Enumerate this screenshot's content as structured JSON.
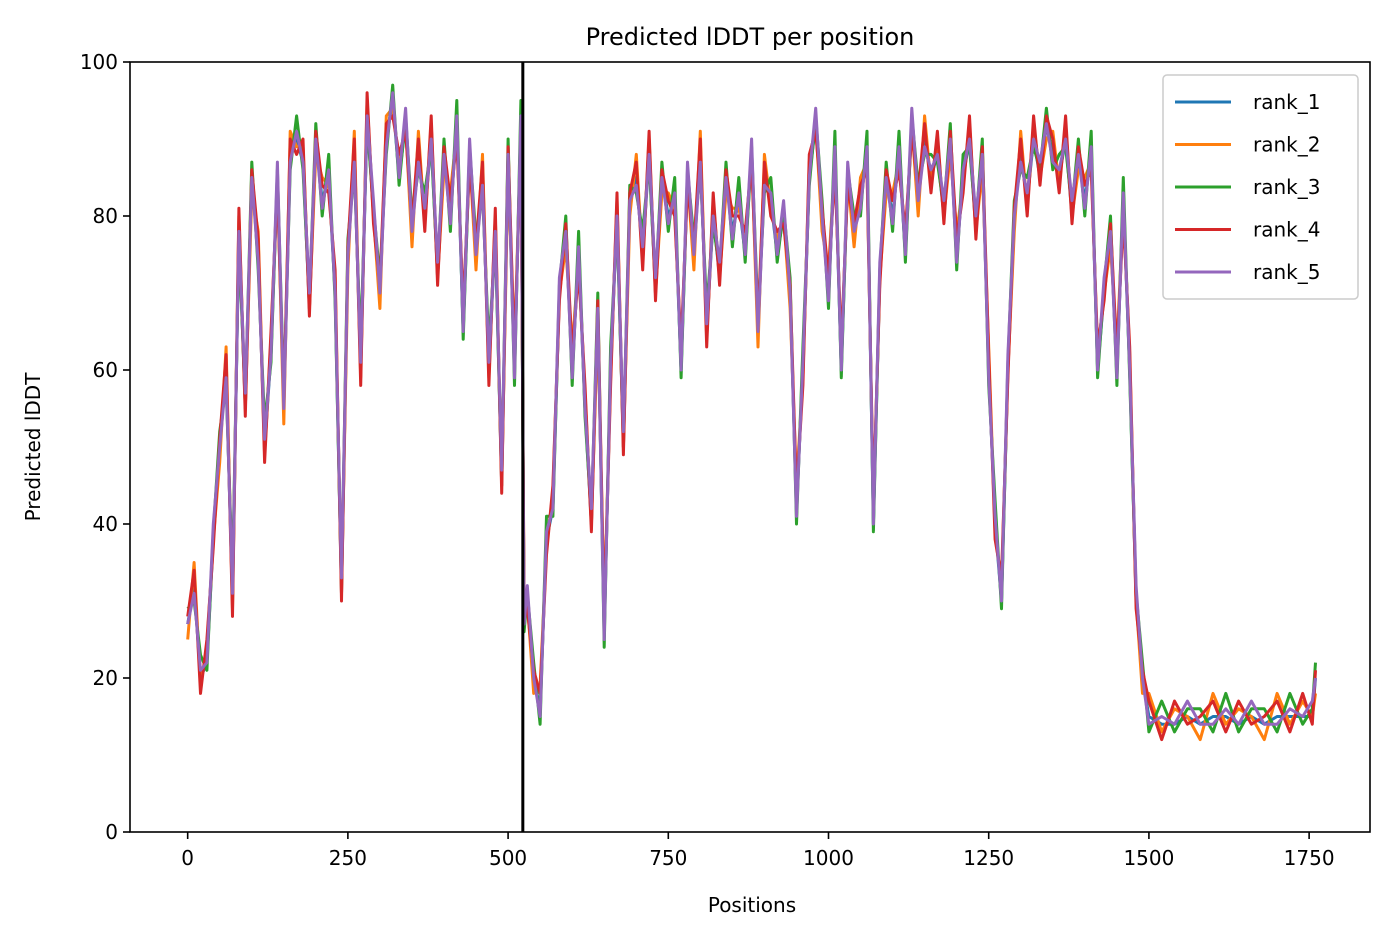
{
  "chart_data": {
    "type": "line",
    "title": "Predicted lDDT per position",
    "xlabel": "Positions",
    "ylabel": "Predicted lDDT",
    "xlim": [
      -90,
      1845
    ],
    "ylim": [
      0,
      100
    ],
    "xticks": [
      0,
      250,
      500,
      750,
      1000,
      1250,
      1500,
      1750
    ],
    "yticks": [
      0,
      20,
      40,
      60,
      80,
      100
    ],
    "grid": false,
    "legend_position": "top-right",
    "chain_break": 523,
    "series": [
      {
        "name": "rank_1",
        "color": "#1f77b4"
      },
      {
        "name": "rank_2",
        "color": "#ff7f0e"
      },
      {
        "name": "rank_3",
        "color": "#2ca02c"
      },
      {
        "name": "rank_4",
        "color": "#d62728"
      },
      {
        "name": "rank_5",
        "color": "#9467bd"
      }
    ],
    "x": [
      0,
      10,
      20,
      30,
      40,
      50,
      60,
      70,
      80,
      90,
      100,
      110,
      120,
      130,
      140,
      150,
      160,
      170,
      180,
      190,
      200,
      210,
      220,
      230,
      240,
      250,
      260,
      270,
      280,
      290,
      300,
      310,
      320,
      330,
      340,
      350,
      360,
      370,
      380,
      390,
      400,
      410,
      420,
      430,
      440,
      450,
      460,
      470,
      480,
      490,
      500,
      510,
      520,
      525,
      530,
      540,
      550,
      560,
      570,
      580,
      590,
      600,
      610,
      620,
      630,
      640,
      650,
      660,
      670,
      680,
      690,
      700,
      710,
      720,
      730,
      740,
      750,
      760,
      770,
      780,
      790,
      800,
      810,
      820,
      830,
      840,
      850,
      860,
      870,
      880,
      890,
      900,
      910,
      920,
      930,
      940,
      950,
      960,
      970,
      980,
      990,
      1000,
      1010,
      1020,
      1030,
      1040,
      1050,
      1060,
      1070,
      1080,
      1090,
      1100,
      1110,
      1120,
      1130,
      1140,
      1150,
      1160,
      1170,
      1180,
      1190,
      1200,
      1210,
      1220,
      1230,
      1240,
      1250,
      1260,
      1270,
      1280,
      1290,
      1300,
      1310,
      1320,
      1330,
      1340,
      1350,
      1360,
      1370,
      1380,
      1390,
      1400,
      1410,
      1420,
      1430,
      1440,
      1450,
      1460,
      1470,
      1480,
      1490,
      1500,
      1520,
      1540,
      1560,
      1580,
      1600,
      1620,
      1640,
      1660,
      1680,
      1700,
      1720,
      1740,
      1755,
      1760
    ],
    "base": [
      27,
      32,
      20,
      22,
      38,
      50,
      60,
      30,
      78,
      55,
      85,
      75,
      50,
      62,
      85,
      55,
      88,
      90,
      87,
      68,
      90,
      82,
      85,
      70,
      31,
      75,
      88,
      60,
      93,
      80,
      70,
      90,
      95,
      85,
      92,
      78,
      88,
      80,
      90,
      72,
      88,
      80,
      92,
      65,
      88,
      75,
      85,
      60,
      78,
      45,
      88,
      60,
      92,
      27,
      30,
      20,
      16,
      38,
      42,
      70,
      78,
      60,
      75,
      55,
      40,
      68,
      26,
      60,
      80,
      50,
      82,
      85,
      75,
      88,
      70,
      85,
      80,
      82,
      60,
      85,
      75,
      88,
      65,
      80,
      72,
      85,
      78,
      82,
      75,
      88,
      65,
      85,
      82,
      75,
      80,
      70,
      42,
      60,
      85,
      92,
      80,
      70,
      88,
      60,
      85,
      78,
      82,
      88,
      40,
      72,
      85,
      80,
      88,
      75,
      92,
      82,
      90,
      85,
      88,
      80,
      90,
      75,
      85,
      90,
      78,
      88,
      60,
      40,
      30,
      60,
      80,
      88,
      82,
      90,
      85,
      92,
      88,
      85,
      90,
      80,
      88,
      82,
      88,
      60,
      70,
      78,
      60,
      82,
      60,
      30,
      20,
      15,
      14,
      14,
      15,
      14,
      15,
      15,
      14,
      15,
      14,
      15,
      15,
      15,
      15,
      20
    ],
    "series_offsets": [
      {
        "name": "rank_1",
        "values": [
          0,
          0,
          0,
          0,
          0
        ]
      },
      {
        "name": "rank_2",
        "values": [
          -2,
          3,
          -1,
          2,
          0
        ]
      },
      {
        "name": "rank_3",
        "values": [
          2,
          -2,
          3,
          -1,
          1
        ]
      },
      {
        "name": "rank_4",
        "values": [
          1,
          2,
          -2,
          3,
          -1
        ]
      },
      {
        "name": "rank_5",
        "values": [
          0,
          -1,
          1,
          0,
          2
        ]
      }
    ]
  }
}
